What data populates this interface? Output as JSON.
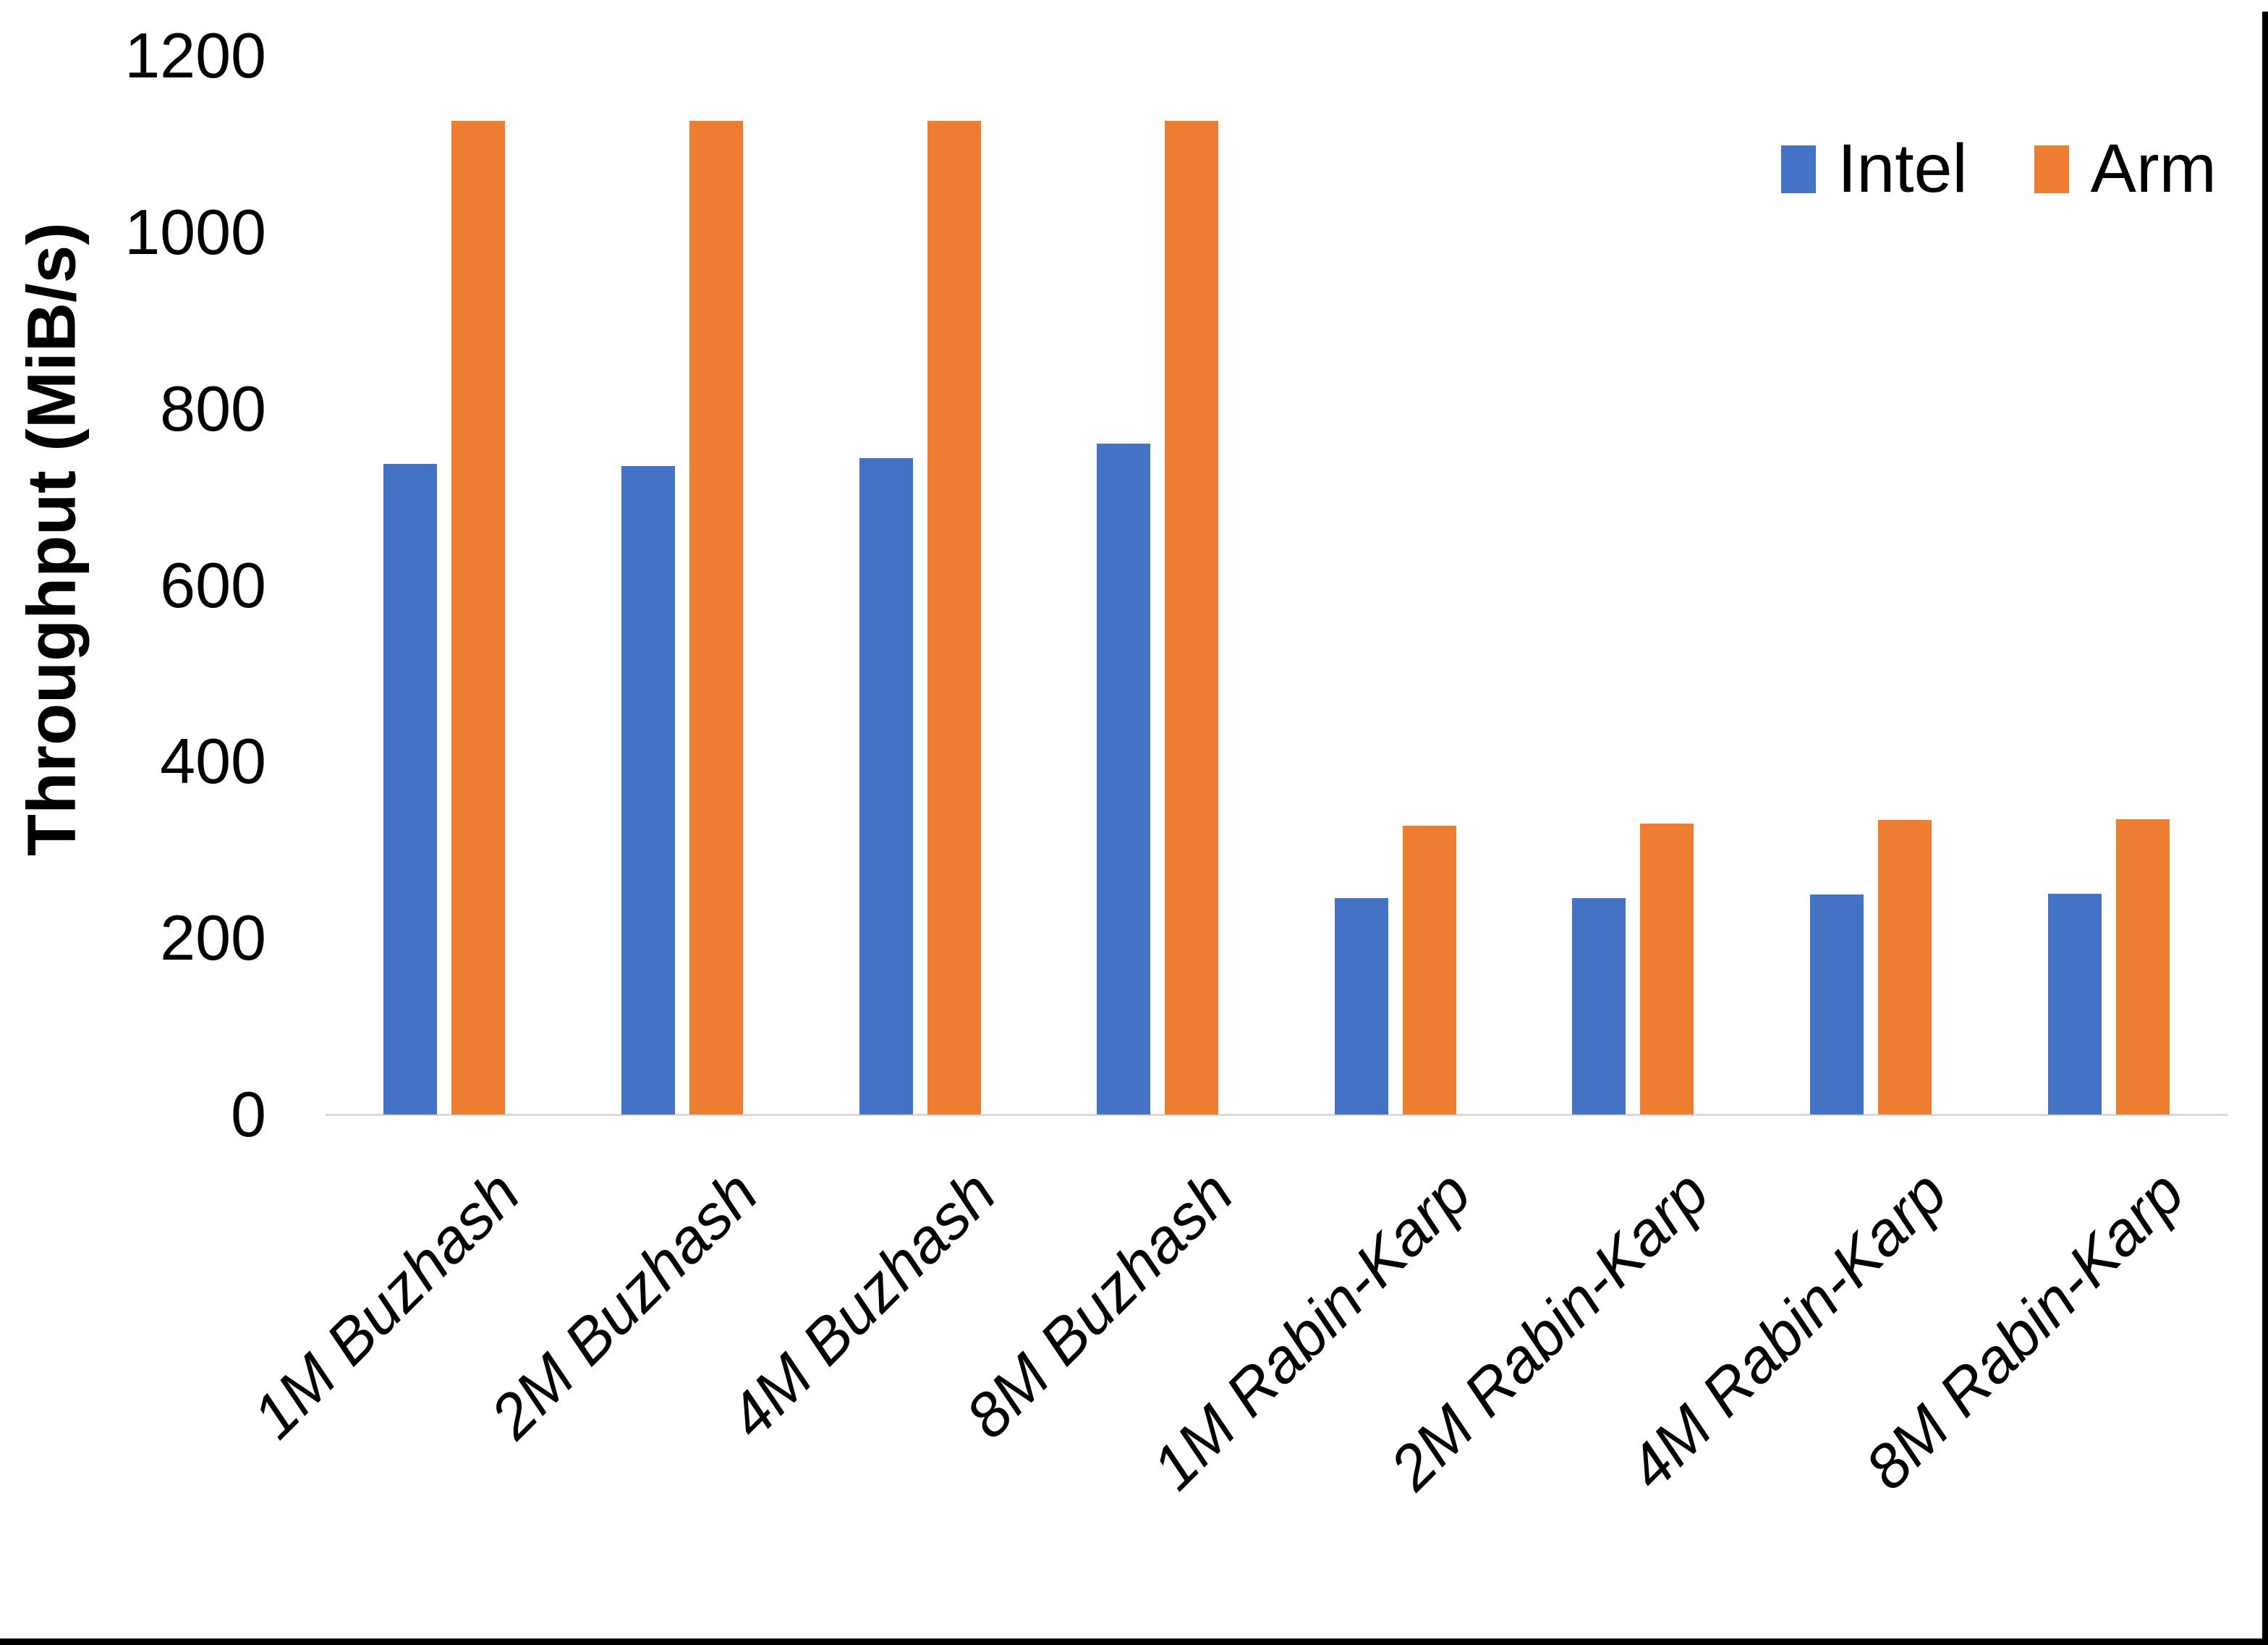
{
  "chart_data": {
    "type": "bar",
    "title": "",
    "xlabel": "",
    "ylabel": "Throughput (MiB/s)",
    "ylim": [
      0,
      1200
    ],
    "y_ticks": [
      0,
      200,
      400,
      600,
      800,
      1000,
      1200
    ],
    "grid": false,
    "legend_position": "top-right",
    "categories": [
      "1M Buzhash",
      "2M Buzhash",
      "4M Buzhash",
      "8M Buzhash",
      "1M Rabin-Karp",
      "2M Rabin-Karp",
      "4M Rabin-Karp",
      "8M Rabin-Karp"
    ],
    "series": [
      {
        "name": "Intel",
        "color": "#4472C4",
        "values": [
          737,
          735,
          744,
          760,
          245,
          245,
          249,
          250
        ]
      },
      {
        "name": "Arm",
        "color": "#ED7D31",
        "values": [
          1126,
          1126,
          1126,
          1126,
          327,
          330,
          334,
          335
        ]
      }
    ]
  },
  "colors": {
    "background": "#FFFFFF",
    "axis_line": "#D9D9D9",
    "text": "#000000",
    "frame": "#000000"
  }
}
